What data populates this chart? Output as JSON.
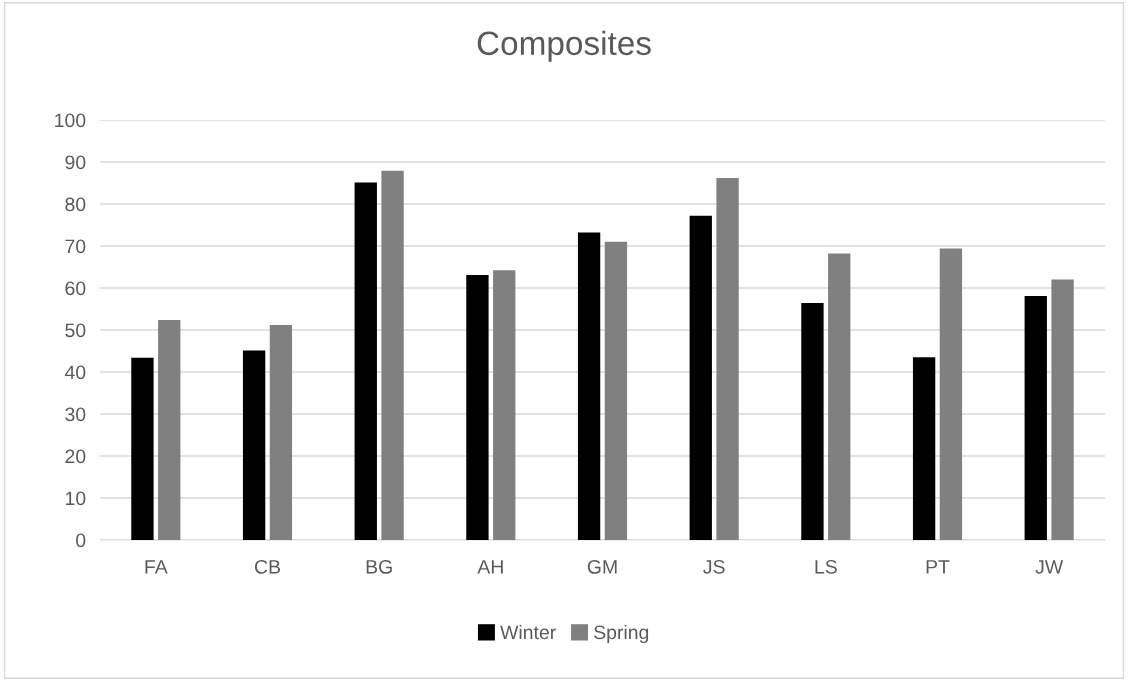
{
  "chart_data": {
    "type": "bar",
    "title": "Composites",
    "categories": [
      "FA",
      "CB",
      "BG",
      "AH",
      "GM",
      "JS",
      "LS",
      "PT",
      "JW"
    ],
    "series": [
      {
        "name": "Winter",
        "color": "#000000",
        "values": [
          43.4,
          45.1,
          85.1,
          63.1,
          73.2,
          77.2,
          56.4,
          43.5,
          58.1
        ]
      },
      {
        "name": "Spring",
        "color": "#808080",
        "values": [
          52.4,
          51.2,
          87.9,
          64.2,
          71.0,
          86.2,
          68.2,
          69.4,
          62.0
        ]
      }
    ],
    "ylim": [
      0,
      100
    ],
    "yticks": [
      0,
      10,
      20,
      30,
      40,
      50,
      60,
      70,
      80,
      90,
      100
    ],
    "grid": "y",
    "legend": "bottom"
  }
}
